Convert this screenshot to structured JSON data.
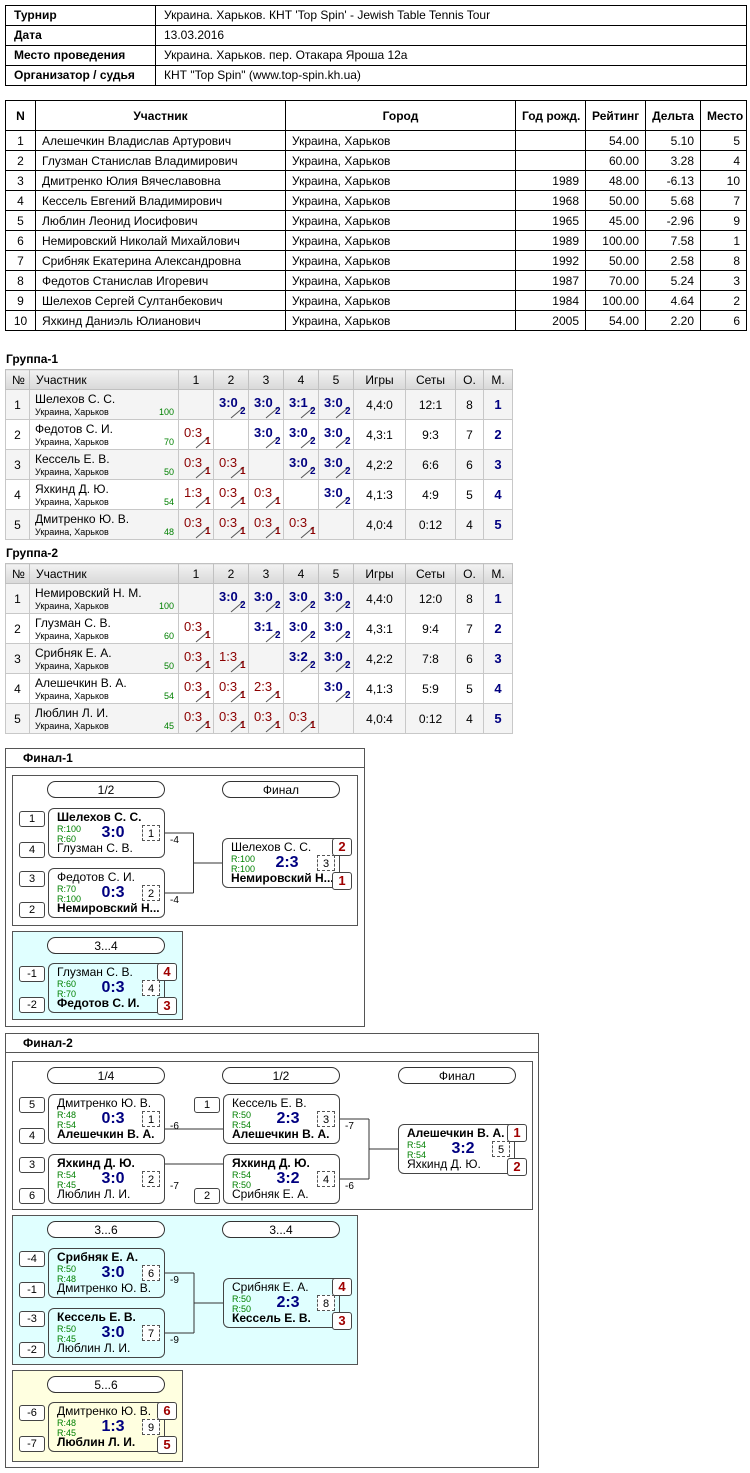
{
  "info": [
    {
      "label": "Турнир",
      "value": "Украина. Харьков. КНТ 'Top Spin' - Jewish Table Tennis Tour"
    },
    {
      "label": "Дата",
      "value": "13.03.2016"
    },
    {
      "label": "Место проведения",
      "value": "Украина. Харьков. пер. Отакара Яроша 12а"
    },
    {
      "label": "Организатор / судья",
      "value": "КНТ \"Top Spin\" (www.top-spin.kh.ua)"
    }
  ],
  "participants": {
    "header": [
      "N",
      "Участник",
      "Город",
      "Год рожд.",
      "Рейтинг",
      "Дельта",
      "Место"
    ],
    "rows": [
      [
        "1",
        "Алешечкин Владислав Артурович",
        "Украина, Харьков",
        null,
        "54.00",
        "5.10",
        "5"
      ],
      [
        "2",
        "Глузман Станислав Владимирович",
        "Украина, Харьков",
        null,
        "60.00",
        "3.28",
        "4"
      ],
      [
        "3",
        "Дмитренко Юлия Вячеславовна",
        "Украина, Харьков",
        "1989",
        "48.00",
        "-6.13",
        "10"
      ],
      [
        "4",
        "Кессель Евгений Владимирович",
        "Украина, Харьков",
        "1968",
        "50.00",
        "5.68",
        "7"
      ],
      [
        "5",
        "Люблин Леонид Иосифович",
        "Украина, Харьков",
        "1965",
        "45.00",
        "-2.96",
        "9"
      ],
      [
        "6",
        "Немировский Николай Михайлович",
        "Украина, Харьков",
        "1989",
        "100.00",
        "7.58",
        "1"
      ],
      [
        "7",
        "Срибняк Екатерина Александровна",
        "Украина, Харьков",
        "1992",
        "50.00",
        "2.58",
        "8"
      ],
      [
        "8",
        "Федотов Станислав Игоревич",
        "Украина, Харьков",
        "1987",
        "70.00",
        "5.24",
        "3"
      ],
      [
        "9",
        "Шелехов Сергей Султанбекович",
        "Украина, Харьков",
        "1984",
        "100.00",
        "4.64",
        "2"
      ],
      [
        "10",
        "Яхкинд Даниэль Юлианович",
        "Украина, Харьков",
        "2005",
        "54.00",
        "2.20",
        "6"
      ]
    ]
  },
  "groups": [
    {
      "title": "Группа-1",
      "header": [
        "№",
        "Участник",
        "1",
        "2",
        "3",
        "4",
        "5",
        "Игры",
        "Сеты",
        "О.",
        "М."
      ],
      "rows": [
        {
          "n": "1",
          "name": "Шелехов С. С.",
          "city": "Украина, Харьков",
          "rating": "100",
          "results": [
            null,
            {
              "score": "3:0",
              "pts": "2"
            },
            {
              "score": "3:0",
              "pts": "2"
            },
            {
              "score": "3:1",
              "pts": "2"
            },
            {
              "score": "3:0",
              "pts": "2"
            }
          ],
          "games": "4,4:0",
          "sets": "12:1",
          "points": "8",
          "place": "1"
        },
        {
          "n": "2",
          "name": "Федотов С. И.",
          "city": "Украина, Харьков",
          "rating": "70",
          "results": [
            {
              "score": "0:3",
              "pts": "1"
            },
            null,
            {
              "score": "3:0",
              "pts": "2"
            },
            {
              "score": "3:0",
              "pts": "2"
            },
            {
              "score": "3:0",
              "pts": "2"
            }
          ],
          "games": "4,3:1",
          "sets": "9:3",
          "points": "7",
          "place": "2"
        },
        {
          "n": "3",
          "name": "Кессель Е. В.",
          "city": "Украина, Харьков",
          "rating": "50",
          "results": [
            {
              "score": "0:3",
              "pts": "1"
            },
            {
              "score": "0:3",
              "pts": "1"
            },
            null,
            {
              "score": "3:0",
              "pts": "2"
            },
            {
              "score": "3:0",
              "pts": "2"
            }
          ],
          "games": "4,2:2",
          "sets": "6:6",
          "points": "6",
          "place": "3"
        },
        {
          "n": "4",
          "name": "Яхкинд Д. Ю.",
          "city": "Украина, Харьков",
          "rating": "54",
          "results": [
            {
              "score": "1:3",
              "pts": "1"
            },
            {
              "score": "0:3",
              "pts": "1"
            },
            {
              "score": "0:3",
              "pts": "1"
            },
            null,
            {
              "score": "3:0",
              "pts": "2"
            }
          ],
          "games": "4,1:3",
          "sets": "4:9",
          "points": "5",
          "place": "4"
        },
        {
          "n": "5",
          "name": "Дмитренко Ю. В.",
          "city": "Украина, Харьков",
          "rating": "48",
          "results": [
            {
              "score": "0:3",
              "pts": "1"
            },
            {
              "score": "0:3",
              "pts": "1"
            },
            {
              "score": "0:3",
              "pts": "1"
            },
            {
              "score": "0:3",
              "pts": "1"
            },
            null
          ],
          "games": "4,0:4",
          "sets": "0:12",
          "points": "4",
          "place": "5"
        }
      ]
    },
    {
      "title": "Группа-2",
      "header": [
        "№",
        "Участник",
        "1",
        "2",
        "3",
        "4",
        "5",
        "Игры",
        "Сеты",
        "О.",
        "М."
      ],
      "rows": [
        {
          "n": "1",
          "name": "Немировский Н. М.",
          "city": "Украина, Харьков",
          "rating": "100",
          "results": [
            null,
            {
              "score": "3:0",
              "pts": "2"
            },
            {
              "score": "3:0",
              "pts": "2"
            },
            {
              "score": "3:0",
              "pts": "2"
            },
            {
              "score": "3:0",
              "pts": "2"
            }
          ],
          "games": "4,4:0",
          "sets": "12:0",
          "points": "8",
          "place": "1"
        },
        {
          "n": "2",
          "name": "Глузман С. В.",
          "city": "Украина, Харьков",
          "rating": "60",
          "results": [
            {
              "score": "0:3",
              "pts": "1"
            },
            null,
            {
              "score": "3:1",
              "pts": "2"
            },
            {
              "score": "3:0",
              "pts": "2"
            },
            {
              "score": "3:0",
              "pts": "2"
            }
          ],
          "games": "4,3:1",
          "sets": "9:4",
          "points": "7",
          "place": "2"
        },
        {
          "n": "3",
          "name": "Срибняк Е. А.",
          "city": "Украина, Харьков",
          "rating": "50",
          "results": [
            {
              "score": "0:3",
              "pts": "1"
            },
            {
              "score": "1:3",
              "pts": "1"
            },
            null,
            {
              "score": "3:2",
              "pts": "2"
            },
            {
              "score": "3:0",
              "pts": "2"
            }
          ],
          "games": "4,2:2",
          "sets": "7:8",
          "points": "6",
          "place": "3"
        },
        {
          "n": "4",
          "name": "Алешечкин В. А.",
          "city": "Украина, Харьков",
          "rating": "54",
          "results": [
            {
              "score": "0:3",
              "pts": "1"
            },
            {
              "score": "0:3",
              "pts": "1"
            },
            {
              "score": "2:3",
              "pts": "1"
            },
            null,
            {
              "score": "3:0",
              "pts": "2"
            }
          ],
          "games": "4,1:3",
          "sets": "5:9",
          "points": "5",
          "place": "4"
        },
        {
          "n": "5",
          "name": "Люблин Л. И.",
          "city": "Украина, Харьков",
          "rating": "45",
          "results": [
            {
              "score": "0:3",
              "pts": "1"
            },
            {
              "score": "0:3",
              "pts": "1"
            },
            {
              "score": "0:3",
              "pts": "1"
            },
            {
              "score": "0:3",
              "pts": "1"
            },
            null
          ],
          "games": "4,0:4",
          "sets": "0:12",
          "points": "4",
          "place": "5"
        }
      ]
    }
  ],
  "finals": [
    {
      "title": "Финал-1",
      "sections": [
        {
          "rounds": [
            "1/2",
            "Финал"
          ],
          "matches": [
            {
              "num": "1",
              "score": "3:0",
              "loser_to": "-4",
              "players": [
                {
                  "seed": "1",
                  "name": "Шелехов С. С.",
                  "rating": "R:100"
                },
                {
                  "seed": "4",
                  "name": "Глузман С. В.",
                  "rating": "R:60"
                }
              ]
            },
            {
              "num": "2",
              "score": "0:3",
              "loser_to": "-4",
              "players": [
                {
                  "seed": "3",
                  "name": "Федотов С. И.",
                  "rating": "R:70"
                },
                {
                  "seed": "2",
                  "name": "Немировский Н...",
                  "rating": "R:100"
                }
              ]
            },
            {
              "num": "3",
              "score": "2:3",
              "players": [
                {
                  "name": "Шелехов С. С.",
                  "rating": "R:100",
                  "place": "2"
                },
                {
                  "name": "Немировский Н...",
                  "rating": "R:100",
                  "place": "1"
                }
              ]
            }
          ]
        },
        {
          "rounds": [
            "3...4"
          ],
          "matches": [
            {
              "num": "4",
              "score": "0:3",
              "players": [
                {
                  "seed": "-1",
                  "name": "Глузман С. В.",
                  "rating": "R:60",
                  "place": "4"
                },
                {
                  "seed": "-2",
                  "name": "Федотов С. И.",
                  "rating": "R:70",
                  "place": "3"
                }
              ]
            }
          ]
        }
      ]
    },
    {
      "title": "Финал-2",
      "sections": [
        {
          "rounds": [
            "1/4",
            "1/2",
            "Финал"
          ],
          "matches": [
            {
              "num": "1",
              "score": "0:3",
              "loser_to": "-6",
              "players": [
                {
                  "seed": "5",
                  "name": "Дмитренко Ю. В.",
                  "rating": "R:48"
                },
                {
                  "seed": "4",
                  "name": "Алешечкин В. А.",
                  "rating": "R:54"
                }
              ]
            },
            {
              "num": "2",
              "score": "3:0",
              "loser_to": "-7",
              "players": [
                {
                  "seed": "3",
                  "name": "Яхкинд Д. Ю.",
                  "rating": "R:54"
                },
                {
                  "seed": "6",
                  "name": "Люблин Л. И.",
                  "rating": "R:45"
                }
              ]
            },
            {
              "num": "3",
              "score": "2:3",
              "loser_to": "-7",
              "players": [
                {
                  "seed": "1",
                  "name": "Кессель Е. В.",
                  "rating": "R:50"
                },
                {
                  "name": "Алешечкин В. А.",
                  "rating": "R:54"
                }
              ]
            },
            {
              "num": "4",
              "score": "3:2",
              "loser_to": "-6",
              "players": [
                {
                  "name": "Яхкинд Д. Ю.",
                  "rating": "R:54"
                },
                {
                  "seed": "2",
                  "name": "Срибняк Е. А.",
                  "rating": "R:50"
                }
              ]
            },
            {
              "num": "5",
              "score": "3:2",
              "players": [
                {
                  "name": "Алешечкин В. А.",
                  "rating": "R:54",
                  "place": "1"
                },
                {
                  "name": "Яхкинд Д. Ю.",
                  "rating": "R:54",
                  "place": "2"
                }
              ]
            }
          ]
        },
        {
          "rounds": [
            "3...6",
            "3...4"
          ],
          "matches": [
            {
              "num": "6",
              "score": "3:0",
              "loser_to": "-9",
              "players": [
                {
                  "seed": "-4",
                  "name": "Срибняк Е. А.",
                  "rating": "R:50"
                },
                {
                  "seed": "-1",
                  "name": "Дмитренко Ю. В.",
                  "rating": "R:48"
                }
              ]
            },
            {
              "num": "7",
              "score": "3:0",
              "loser_to": "-9",
              "players": [
                {
                  "seed": "-3",
                  "name": "Кессель Е. В.",
                  "rating": "R:50"
                },
                {
                  "seed": "-2",
                  "name": "Люблин Л. И.",
                  "rating": "R:45"
                }
              ]
            },
            {
              "num": "8",
              "score": "2:3",
              "players": [
                {
                  "name": "Срибняк Е. А.",
                  "rating": "R:50",
                  "place": "4"
                },
                {
                  "name": "Кессель Е. В.",
                  "rating": "R:50",
                  "place": "3"
                }
              ]
            }
          ]
        },
        {
          "rounds": [
            "5...6"
          ],
          "matches": [
            {
              "num": "9",
              "score": "1:3",
              "players": [
                {
                  "seed": "-6",
                  "name": "Дмитренко Ю. В.",
                  "rating": "R:48",
                  "place": "6"
                },
                {
                  "seed": "-7",
                  "name": "Люблин Л. И.",
                  "rating": "R:45",
                  "place": "5"
                }
              ]
            }
          ]
        }
      ]
    }
  ]
}
